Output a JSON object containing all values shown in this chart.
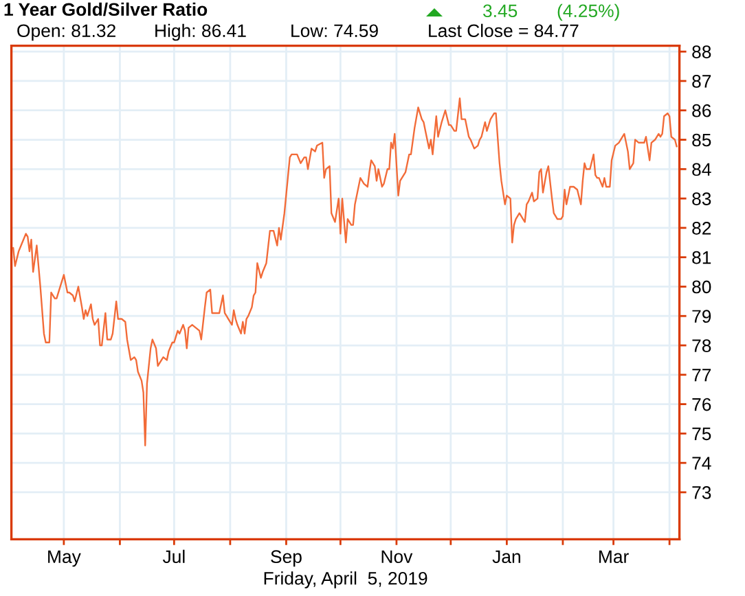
{
  "chart_data": {
    "type": "line",
    "title": "1 Year Gold/Silver Ratio",
    "xlabel": "Friday, April  5, 2019",
    "annotations": [
      "Open: 81.32",
      "High: 86.41",
      "Low: 74.59",
      "Last Close = 84.77",
      "3.45",
      "(4.25%)"
    ],
    "x": [
      "2018-04-03",
      "2018-04-04",
      "2018-04-06",
      "2018-04-08",
      "2018-04-10",
      "2018-04-11",
      "2018-04-12",
      "2018-04-13",
      "2018-04-14",
      "2018-04-16",
      "2018-04-17",
      "2018-04-18",
      "2018-04-20",
      "2018-04-21",
      "2018-04-23",
      "2018-04-24",
      "2018-04-26",
      "2018-04-27",
      "2018-04-29",
      "2018-05-01",
      "2018-05-03",
      "2018-05-04",
      "2018-05-06",
      "2018-05-07",
      "2018-05-09",
      "2018-05-11",
      "2018-05-12",
      "2018-05-13",
      "2018-05-14",
      "2018-05-16",
      "2018-05-17",
      "2018-05-18",
      "2018-05-20",
      "2018-05-21",
      "2018-05-22",
      "2018-05-24",
      "2018-05-25",
      "2018-05-27",
      "2018-05-28",
      "2018-05-30",
      "2018-05-31",
      "2018-06-02",
      "2018-06-04",
      "2018-06-05",
      "2018-06-07",
      "2018-06-09",
      "2018-06-10",
      "2018-06-11",
      "2018-06-13",
      "2018-06-14",
      "2018-06-15",
      "2018-06-16",
      "2018-06-18",
      "2018-06-19",
      "2018-06-21",
      "2018-06-22",
      "2018-06-24",
      "2018-06-25",
      "2018-06-27",
      "2018-06-28",
      "2018-06-30",
      "2018-07-01",
      "2018-07-03",
      "2018-07-04",
      "2018-07-06",
      "2018-07-07",
      "2018-07-08",
      "2018-07-09",
      "2018-07-11",
      "2018-07-13",
      "2018-07-15",
      "2018-07-16",
      "2018-07-18",
      "2018-07-19",
      "2018-07-21",
      "2018-07-22",
      "2018-07-24",
      "2018-07-25",
      "2018-07-26",
      "2018-07-28",
      "2018-07-29",
      "2018-07-30",
      "2018-07-31",
      "2018-08-02",
      "2018-08-03",
      "2018-08-04",
      "2018-08-05",
      "2018-08-07",
      "2018-08-08",
      "2018-08-09",
      "2018-08-10",
      "2018-08-11",
      "2018-08-13",
      "2018-08-14",
      "2018-08-15",
      "2018-08-16",
      "2018-08-18",
      "2018-08-19",
      "2018-08-21",
      "2018-08-23",
      "2018-08-25",
      "2018-08-27",
      "2018-08-28",
      "2018-08-29",
      "2018-08-31",
      "2018-09-03",
      "2018-09-04",
      "2018-09-07",
      "2018-09-09",
      "2018-09-11",
      "2018-09-12",
      "2018-09-13",
      "2018-09-15",
      "2018-09-17",
      "2018-09-18",
      "2018-09-21",
      "2018-09-22",
      "2018-09-23",
      "2018-09-25",
      "2018-09-26",
      "2018-09-28",
      "2018-09-30",
      "2018-10-01",
      "2018-10-02",
      "2018-10-04",
      "2018-10-05",
      "2018-10-07",
      "2018-10-08",
      "2018-10-09",
      "2018-10-12",
      "2018-10-13",
      "2018-10-14",
      "2018-10-16",
      "2018-10-17",
      "2018-10-18",
      "2018-10-20",
      "2018-10-21",
      "2018-10-22",
      "2018-10-24",
      "2018-10-25",
      "2018-10-27",
      "2018-10-28",
      "2018-10-29",
      "2018-10-30",
      "2018-10-31",
      "2018-11-02",
      "2018-11-03",
      "2018-11-05",
      "2018-11-06",
      "2018-11-08",
      "2018-11-09",
      "2018-11-11",
      "2018-11-13",
      "2018-11-15",
      "2018-11-16",
      "2018-11-17",
      "2018-11-19",
      "2018-11-20",
      "2018-11-21",
      "2018-11-23",
      "2018-11-24",
      "2018-11-26",
      "2018-11-28",
      "2018-11-30",
      "2018-12-01",
      "2018-12-03",
      "2018-12-04",
      "2018-12-06",
      "2018-12-07",
      "2018-12-09",
      "2018-12-11",
      "2018-12-12",
      "2018-12-14",
      "2018-12-16",
      "2018-12-17",
      "2018-12-18",
      "2018-12-20",
      "2018-12-21",
      "2018-12-23",
      "2018-12-25",
      "2018-12-26",
      "2018-12-28",
      "2018-12-29",
      "2018-12-31",
      "2019-01-01",
      "2019-01-03",
      "2019-01-04",
      "2019-01-05",
      "2019-01-06",
      "2019-01-08",
      "2019-01-10",
      "2019-01-11",
      "2019-01-12",
      "2019-01-13",
      "2019-01-15",
      "2019-01-16",
      "2019-01-18",
      "2019-01-19",
      "2019-01-20",
      "2019-01-21",
      "2019-01-23",
      "2019-01-24",
      "2019-01-26",
      "2019-01-27",
      "2019-01-29",
      "2019-01-31",
      "2019-02-01",
      "2019-02-02",
      "2019-02-03",
      "2019-02-05",
      "2019-02-07",
      "2019-02-09",
      "2019-02-11",
      "2019-02-12",
      "2019-02-13",
      "2019-02-14",
      "2019-02-16",
      "2019-02-18",
      "2019-02-19",
      "2019-02-20",
      "2019-02-21",
      "2019-02-23",
      "2019-02-24",
      "2019-02-25",
      "2019-02-27",
      "2019-02-28",
      "2019-03-02",
      "2019-03-04",
      "2019-03-06",
      "2019-03-07",
      "2019-03-09",
      "2019-03-10",
      "2019-03-12",
      "2019-03-13",
      "2019-03-15",
      "2019-03-16",
      "2019-03-18",
      "2019-03-19",
      "2019-03-21",
      "2019-03-22",
      "2019-03-24",
      "2019-03-26",
      "2019-03-27",
      "2019-03-28",
      "2019-03-29",
      "2019-03-31",
      "2019-04-01",
      "2019-04-02",
      "2019-04-04",
      "2019-04-05"
    ],
    "series": [
      {
        "color": "#f26b38",
        "values": [
          81.32,
          80.7,
          81.2,
          81.5,
          81.8,
          81.7,
          81.2,
          81.6,
          80.5,
          81.4,
          80.7,
          80.0,
          78.4,
          78.1,
          78.1,
          79.8,
          79.6,
          79.6,
          80.0,
          80.4,
          79.8,
          79.8,
          79.7,
          79.5,
          80.0,
          79.3,
          78.9,
          79.2,
          79.0,
          79.4,
          78.9,
          78.7,
          78.9,
          78.0,
          78.0,
          79.1,
          78.2,
          78.2,
          78.4,
          79.5,
          78.9,
          78.9,
          78.8,
          78.2,
          77.5,
          77.6,
          77.5,
          77.1,
          76.8,
          76.4,
          74.59,
          76.7,
          77.9,
          78.2,
          77.9,
          77.3,
          77.5,
          77.6,
          77.5,
          77.8,
          78.1,
          78.1,
          78.5,
          78.4,
          78.7,
          78.5,
          77.9,
          78.6,
          78.7,
          78.6,
          78.5,
          78.2,
          79.3,
          79.8,
          79.9,
          79.1,
          79.1,
          79.1,
          79.1,
          79.7,
          79.1,
          79.0,
          78.9,
          78.7,
          79.2,
          78.9,
          78.7,
          78.4,
          78.8,
          78.4,
          78.9,
          79.0,
          79.3,
          79.7,
          79.8,
          80.8,
          80.3,
          80.5,
          80.8,
          81.9,
          81.9,
          81.4,
          82.0,
          81.6,
          82.5,
          84.4,
          84.5,
          84.5,
          84.2,
          84.4,
          84.4,
          84.0,
          84.7,
          84.6,
          84.8,
          84.9,
          83.7,
          84.0,
          84.1,
          82.5,
          82.2,
          83.0,
          81.8,
          83.0,
          81.5,
          82.3,
          82.1,
          82.1,
          82.8,
          83.7,
          83.6,
          83.5,
          83.4,
          83.9,
          84.3,
          84.1,
          83.6,
          84.0,
          83.4,
          83.5,
          84.0,
          84.0,
          84.9,
          84.7,
          85.2,
          83.1,
          83.6,
          83.8,
          83.9,
          84.5,
          84.5,
          85.4,
          86.1,
          85.7,
          85.6,
          85.3,
          84.7,
          85.0,
          84.5,
          85.8,
          85.1,
          85.6,
          86.0,
          85.5,
          85.5,
          85.3,
          85.3,
          86.41,
          85.7,
          85.7,
          85.1,
          85.0,
          84.7,
          84.8,
          85.0,
          85.1,
          85.6,
          85.3,
          85.7,
          85.9,
          85.9,
          84.2,
          83.6,
          82.8,
          83.1,
          83.0,
          81.5,
          82.1,
          82.3,
          82.5,
          82.3,
          82.2,
          82.8,
          82.9,
          83.2,
          82.9,
          83.0,
          83.9,
          84.0,
          83.2,
          83.9,
          84.1,
          83.0,
          82.5,
          82.3,
          82.3,
          82.4,
          83.3,
          82.8,
          83.4,
          83.4,
          83.3,
          82.8,
          83.6,
          84.2,
          84.0,
          84.0,
          84.5,
          83.8,
          83.7,
          83.7,
          83.4,
          83.7,
          83.4,
          83.4,
          84.3,
          84.8,
          84.9,
          85.1,
          85.2,
          84.6,
          84.0,
          84.2,
          85.0,
          84.9,
          84.9,
          84.9,
          85.1,
          84.3,
          84.9,
          85.0,
          85.2,
          85.1,
          85.2,
          85.8,
          85.9,
          85.8,
          85.1,
          85.0,
          84.77
        ]
      }
    ],
    "xlim": [
      "2018-04-02",
      "2019-04-06T12:00"
    ],
    "xticks": [
      {
        "value": "2018-05-01",
        "label": "May"
      },
      {
        "value": "2018-06-01",
        "label": null
      },
      {
        "value": "2018-07-01",
        "label": "Jul"
      },
      {
        "value": "2018-08-01",
        "label": null
      },
      {
        "value": "2018-09-01",
        "label": "Sep"
      },
      {
        "value": "2018-10-01",
        "label": null
      },
      {
        "value": "2018-11-01",
        "label": "Nov"
      },
      {
        "value": "2018-12-01",
        "label": null
      },
      {
        "value": "2019-01-01",
        "label": "Jan"
      },
      {
        "value": "2019-02-01",
        "label": null
      },
      {
        "value": "2019-03-01",
        "label": "Mar"
      },
      {
        "value": "2019-04-01",
        "label": null
      }
    ],
    "ylim": [
      71.4,
      88.2
    ],
    "yticks": [
      73,
      74,
      75,
      76,
      77,
      78,
      79,
      80,
      81,
      82,
      83,
      84,
      85,
      86,
      87,
      88
    ],
    "grid": true,
    "line_style": "solid"
  }
}
